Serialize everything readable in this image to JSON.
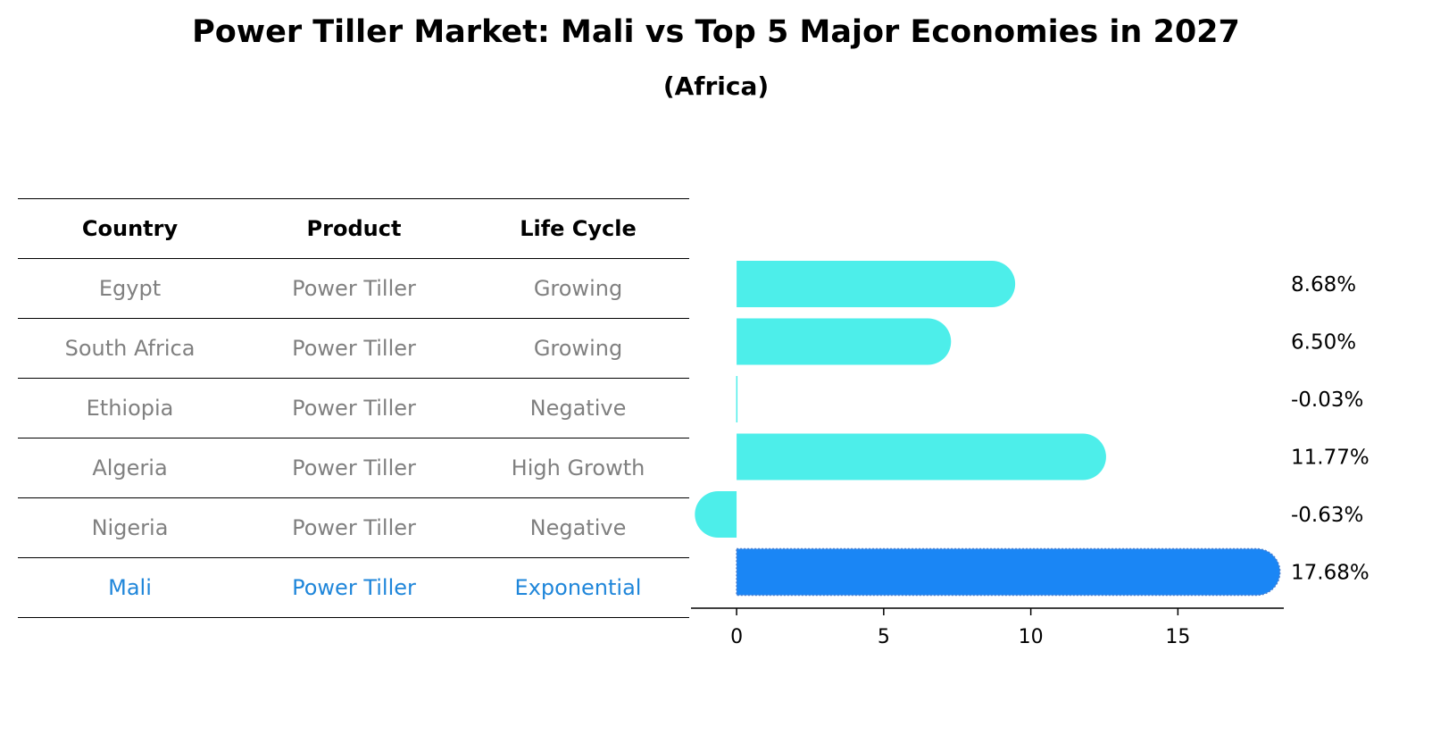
{
  "title": "Power Tiller Market: Mali vs Top 5 Major Economies in 2027",
  "subtitle": "(Africa)",
  "table": {
    "headers": [
      "Country",
      "Product",
      "Life Cycle"
    ],
    "rows": [
      {
        "country": "Egypt",
        "product": "Power Tiller",
        "life_cycle": "Growing"
      },
      {
        "country": "South Africa",
        "product": "Power Tiller",
        "life_cycle": "Growing"
      },
      {
        "country": "Ethiopia",
        "product": "Power Tiller",
        "life_cycle": "Negative"
      },
      {
        "country": "Algeria",
        "product": "Power Tiller",
        "life_cycle": "High Growth"
      },
      {
        "country": "Nigeria",
        "product": "Power Tiller",
        "life_cycle": "Negative"
      },
      {
        "country": "Mali",
        "product": "Power Tiller",
        "life_cycle": "Exponential"
      }
    ]
  },
  "chart_data": {
    "type": "bar",
    "orientation": "horizontal",
    "categories": [
      "Egypt",
      "South Africa",
      "Ethiopia",
      "Algeria",
      "Nigeria",
      "Mali"
    ],
    "values": [
      8.68,
      6.5,
      -0.03,
      11.77,
      -0.63,
      17.68
    ],
    "value_labels": [
      "8.68%",
      "6.50%",
      "-0.03%",
      "11.77%",
      "-0.63%",
      "17.68%"
    ],
    "xticks": [
      0,
      5,
      10,
      15
    ],
    "xlim": [
      -1.55,
      18.6
    ],
    "colors": {
      "default": "#4deeea",
      "highlight": "#1a86f5"
    },
    "highlight_category": "Mali"
  }
}
